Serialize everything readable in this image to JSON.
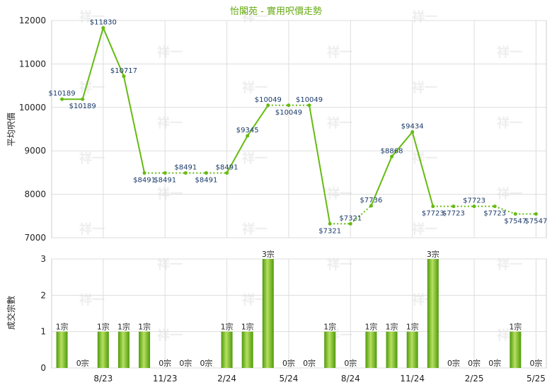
{
  "chart_data": [
    {
      "type": "line",
      "title": "怡閣苑 - 實用呎價走勢",
      "ylabel": "平均呎價",
      "ylim": [
        7000,
        12000
      ],
      "yticks": [
        "7000",
        "8000",
        "9000",
        "10000",
        "11000",
        "12000"
      ],
      "xtick_labels": [
        "8/23",
        "11/23",
        "2/24",
        "5/24",
        "8/24",
        "11/24",
        "2/25",
        "5/25"
      ],
      "grid": true,
      "colors": {
        "line": "#66bb11",
        "marker": "#66bb11",
        "label": "#1a3a6a",
        "title": "#66aa11",
        "grid": "#dddddd",
        "watermark": "#eeeeee"
      },
      "watermark": "祥一",
      "values": [
        10189,
        10189,
        11830,
        10717,
        8491,
        8491,
        8491,
        8491,
        8491,
        9345,
        10049,
        10049,
        10049,
        7321,
        7321,
        7736,
        8868,
        9434,
        7723,
        7723,
        7723,
        7723,
        7547,
        7547
      ],
      "value_labels": [
        "$10189",
        "$10189",
        "$11830",
        "$10717",
        "$8491",
        "$8491",
        "$8491",
        "$8491",
        "$8491",
        "$9345",
        "$10049",
        "$10049",
        "$10049",
        "$7321",
        "$7321",
        "$7736",
        "$8868",
        "$9434",
        "$7723",
        "$7723",
        "$7723",
        "$7723",
        "$7547",
        "$7547"
      ],
      "interpolated": [
        false,
        false,
        false,
        false,
        false,
        true,
        false,
        true,
        false,
        false,
        false,
        true,
        false,
        false,
        true,
        false,
        false,
        false,
        false,
        true,
        false,
        true,
        false,
        true
      ]
    },
    {
      "type": "bar",
      "ylabel": "成交宗數",
      "ylim": [
        0,
        3
      ],
      "yticks": [
        "0",
        "1",
        "2",
        "3"
      ],
      "xtick_labels": [
        "8/23",
        "11/23",
        "2/24",
        "5/24",
        "8/24",
        "11/24",
        "2/25",
        "5/25"
      ],
      "grid": true,
      "colors": {
        "bar_light": "#b6e060",
        "bar_dark": "#4f9a0c",
        "label": "#222222"
      },
      "values": [
        1,
        0,
        1,
        1,
        1,
        0,
        0,
        0,
        1,
        1,
        3,
        0,
        0,
        1,
        0,
        1,
        1,
        1,
        3,
        0,
        0,
        0,
        1,
        0
      ],
      "value_labels": [
        "1宗",
        "0宗",
        "1宗",
        "1宗",
        "1宗",
        "0宗",
        "0宗",
        "0宗",
        "1宗",
        "1宗",
        "3宗",
        "0宗",
        "0宗",
        "1宗",
        "0宗",
        "1宗",
        "1宗",
        "1宗",
        "3宗",
        "0宗",
        "0宗",
        "0宗",
        "1宗",
        "0宗"
      ]
    }
  ]
}
